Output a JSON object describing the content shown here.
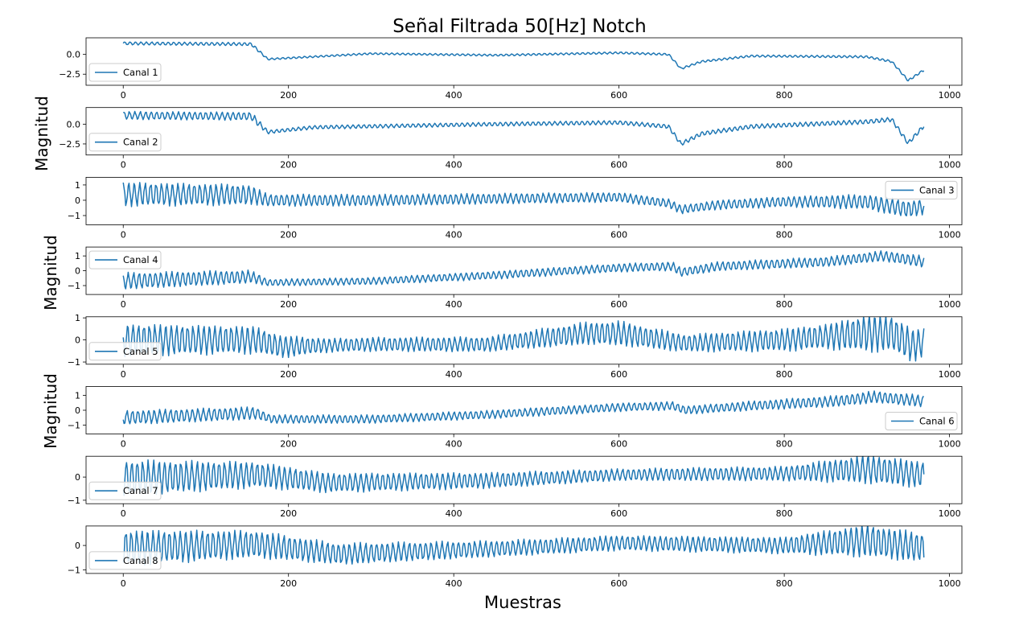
{
  "chart_data": {
    "type": "line",
    "title": "Señal Filtrada 50[Hz] Notch",
    "xlabel": "Muestras",
    "ylabels": [
      "Magnitud",
      "Magnitud",
      "Magnitud"
    ],
    "xlim": [
      -45,
      1015
    ],
    "xticks": [
      0,
      200,
      400,
      600,
      800,
      1000
    ],
    "n_samples": 970,
    "line_color": "#1f77b4",
    "panels": [
      {
        "series_name": "Canal 1",
        "ylim": [
          -3.9,
          2.1
        ],
        "yticks": [
          0.0,
          -2.5
        ],
        "ytick_labels": [
          "0.0",
          "−2.5"
        ],
        "legend": "lower-left",
        "amp": [
          [
            0,
            0.35
          ],
          [
            160,
            0.35
          ],
          [
            175,
            0.2
          ],
          [
            920,
            0.25
          ],
          [
            970,
            0.25
          ]
        ],
        "base": [
          [
            0,
            1.4
          ],
          [
            155,
            1.3
          ],
          [
            175,
            -0.6
          ],
          [
            300,
            0.1
          ],
          [
            450,
            -0.1
          ],
          [
            600,
            0.2
          ],
          [
            660,
            0.0
          ],
          [
            675,
            -1.8
          ],
          [
            700,
            -0.9
          ],
          [
            760,
            -0.2
          ],
          [
            900,
            -0.3
          ],
          [
            930,
            -0.9
          ],
          [
            950,
            -3.3
          ],
          [
            970,
            -1.9
          ]
        ]
      },
      {
        "series_name": "Canal 2",
        "ylim": [
          -3.9,
          2.1
        ],
        "yticks": [
          0.0,
          -2.5
        ],
        "ytick_labels": [
          "0.0",
          "−2.5"
        ],
        "legend": "lower-left",
        "amp": [
          [
            0,
            0.9
          ],
          [
            160,
            0.9
          ],
          [
            175,
            0.4
          ],
          [
            900,
            0.5
          ],
          [
            970,
            0.5
          ]
        ],
        "base": [
          [
            0,
            1.1
          ],
          [
            155,
            1.0
          ],
          [
            175,
            -1.0
          ],
          [
            230,
            -0.4
          ],
          [
            450,
            0.0
          ],
          [
            600,
            0.2
          ],
          [
            660,
            -0.3
          ],
          [
            675,
            -2.5
          ],
          [
            700,
            -1.2
          ],
          [
            760,
            -0.3
          ],
          [
            900,
            0.3
          ],
          [
            930,
            0.6
          ],
          [
            950,
            -2.4
          ],
          [
            970,
            -0.1
          ]
        ]
      },
      {
        "series_name": "Canal 3",
        "ylim": [
          -1.6,
          1.5
        ],
        "yticks": [
          1,
          0,
          -1
        ],
        "ytick_labels": [
          "1",
          "0",
          "−1"
        ],
        "legend": "upper-right",
        "amp": [
          [
            0,
            1.4
          ],
          [
            150,
            1.2
          ],
          [
            175,
            0.7
          ],
          [
            600,
            0.55
          ],
          [
            670,
            0.5
          ],
          [
            800,
            0.6
          ],
          [
            950,
            1.0
          ],
          [
            970,
            0.9
          ]
        ],
        "base": [
          [
            0,
            0.4
          ],
          [
            155,
            0.35
          ],
          [
            175,
            0.0
          ],
          [
            300,
            0.0
          ],
          [
            600,
            0.2
          ],
          [
            660,
            -0.2
          ],
          [
            675,
            -0.6
          ],
          [
            720,
            -0.3
          ],
          [
            800,
            -0.1
          ],
          [
            900,
            -0.1
          ],
          [
            950,
            -0.6
          ],
          [
            970,
            -0.4
          ]
        ]
      },
      {
        "series_name": "Canal 4",
        "ylim": [
          -1.6,
          1.6
        ],
        "yticks": [
          1,
          0,
          -1
        ],
        "ytick_labels": [
          "1",
          "0",
          "−1"
        ],
        "legend": "upper-left",
        "amp": [
          [
            0,
            1.0
          ],
          [
            150,
            0.8
          ],
          [
            175,
            0.4
          ],
          [
            600,
            0.5
          ],
          [
            900,
            0.6
          ],
          [
            970,
            0.7
          ]
        ],
        "base": [
          [
            0,
            -0.7
          ],
          [
            155,
            -0.4
          ],
          [
            175,
            -0.8
          ],
          [
            300,
            -0.7
          ],
          [
            450,
            -0.3
          ],
          [
            600,
            0.2
          ],
          [
            665,
            0.3
          ],
          [
            675,
            -0.1
          ],
          [
            720,
            0.3
          ],
          [
            850,
            0.6
          ],
          [
            920,
            1.0
          ],
          [
            970,
            0.6
          ]
        ]
      },
      {
        "series_name": "Canal 5",
        "ylim": [
          -1.1,
          1.05
        ],
        "yticks": [
          1,
          0,
          -1
        ],
        "ytick_labels": [
          "1",
          "0",
          "−1"
        ],
        "legend": "lower-left",
        "amp": [
          [
            0,
            1.3
          ],
          [
            160,
            1.1
          ],
          [
            250,
            0.55
          ],
          [
            440,
            0.6
          ],
          [
            560,
            0.9
          ],
          [
            600,
            1.0
          ],
          [
            680,
            0.7
          ],
          [
            850,
            1.0
          ],
          [
            900,
            1.5
          ],
          [
            950,
            1.4
          ],
          [
            970,
            1.1
          ]
        ],
        "base": [
          [
            0,
            0.0
          ],
          [
            160,
            0.0
          ],
          [
            190,
            -0.3
          ],
          [
            300,
            -0.2
          ],
          [
            440,
            -0.2
          ],
          [
            560,
            0.3
          ],
          [
            600,
            0.3
          ],
          [
            680,
            -0.15
          ],
          [
            800,
            0.0
          ],
          [
            900,
            0.3
          ],
          [
            930,
            0.3
          ],
          [
            955,
            -0.25
          ],
          [
            970,
            -0.1
          ]
        ]
      },
      {
        "series_name": "Canal 6",
        "ylim": [
          -1.6,
          1.6
        ],
        "yticks": [
          1,
          0,
          -1
        ],
        "ytick_labels": [
          "1",
          "0",
          "−1"
        ],
        "legend": "lower-right",
        "amp": [
          [
            0,
            0.85
          ],
          [
            160,
            0.75
          ],
          [
            175,
            0.5
          ],
          [
            440,
            0.5
          ],
          [
            700,
            0.5
          ],
          [
            900,
            0.7
          ],
          [
            970,
            0.7
          ]
        ],
        "base": [
          [
            0,
            -0.5
          ],
          [
            160,
            -0.2
          ],
          [
            180,
            -0.6
          ],
          [
            300,
            -0.6
          ],
          [
            440,
            -0.3
          ],
          [
            600,
            0.2
          ],
          [
            665,
            0.3
          ],
          [
            680,
            0.0
          ],
          [
            760,
            0.3
          ],
          [
            860,
            0.6
          ],
          [
            910,
            0.9
          ],
          [
            970,
            0.6
          ]
        ]
      },
      {
        "series_name": "Canal 7",
        "ylim": [
          -1.15,
          0.9
        ],
        "yticks": [
          0,
          -1
        ],
        "ytick_labels": [
          "0",
          "−1"
        ],
        "legend": "lower-left",
        "amp": [
          [
            0,
            1.4
          ],
          [
            160,
            1.0
          ],
          [
            250,
            0.75
          ],
          [
            440,
            0.6
          ],
          [
            600,
            0.45
          ],
          [
            800,
            0.55
          ],
          [
            900,
            1.1
          ],
          [
            970,
            1.0
          ]
        ],
        "base": [
          [
            0,
            -0.05
          ],
          [
            160,
            0.1
          ],
          [
            250,
            -0.25
          ],
          [
            440,
            -0.15
          ],
          [
            600,
            0.1
          ],
          [
            800,
            0.15
          ],
          [
            900,
            0.35
          ],
          [
            970,
            0.1
          ]
        ]
      },
      {
        "series_name": "Canal 8",
        "ylim": [
          -1.15,
          0.8
        ],
        "yticks": [
          0,
          -1
        ],
        "ytick_labels": [
          "0",
          "−1"
        ],
        "legend": "lower-left",
        "amp": [
          [
            0,
            1.3
          ],
          [
            160,
            1.0
          ],
          [
            250,
            0.8
          ],
          [
            440,
            0.6
          ],
          [
            600,
            0.55
          ],
          [
            800,
            0.6
          ],
          [
            900,
            1.2
          ],
          [
            970,
            1.05
          ]
        ],
        "base": [
          [
            0,
            -0.1
          ],
          [
            160,
            0.05
          ],
          [
            260,
            -0.35
          ],
          [
            440,
            -0.15
          ],
          [
            600,
            0.1
          ],
          [
            800,
            0.0
          ],
          [
            900,
            0.2
          ],
          [
            970,
            -0.1
          ]
        ]
      }
    ]
  }
}
